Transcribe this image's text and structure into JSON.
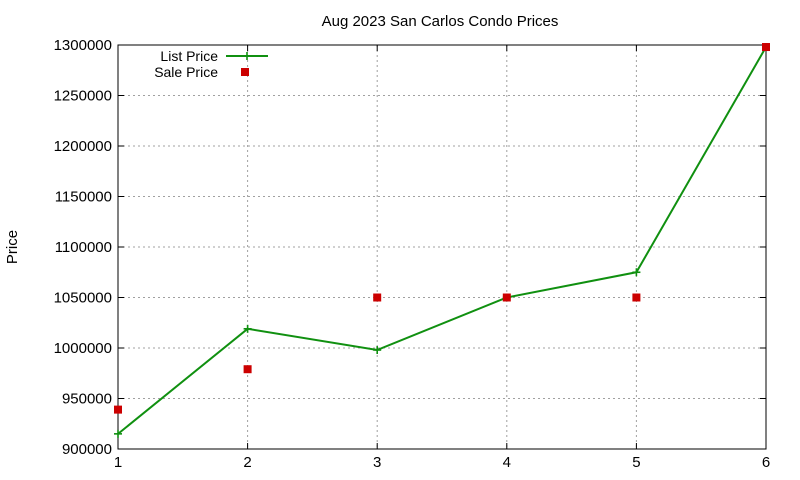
{
  "chart_data": {
    "type": "line",
    "title": "Aug 2023 San Carlos Condo Prices",
    "xlabel": "",
    "ylabel": "Price",
    "x": [
      1,
      2,
      3,
      4,
      5,
      6
    ],
    "xlim": [
      1,
      6
    ],
    "ylim": [
      900000,
      1300000
    ],
    "xticks": [
      "1",
      "2",
      "3",
      "4",
      "5",
      "6"
    ],
    "yticks": [
      "900000",
      "950000",
      "1000000",
      "1050000",
      "1100000",
      "1150000",
      "1200000",
      "1250000",
      "1300000"
    ],
    "grid": true,
    "legend_position": "top-left",
    "series": [
      {
        "name": "List Price",
        "style": "line-with-plus-markers",
        "color": "#109010",
        "values": [
          915000,
          1019000,
          998000,
          1050000,
          1075000,
          1298000
        ]
      },
      {
        "name": "Sale Price",
        "style": "square-markers",
        "color": "#cc0000",
        "values": [
          939000,
          979000,
          1050000,
          1050000,
          1050000,
          1298000
        ]
      }
    ]
  }
}
